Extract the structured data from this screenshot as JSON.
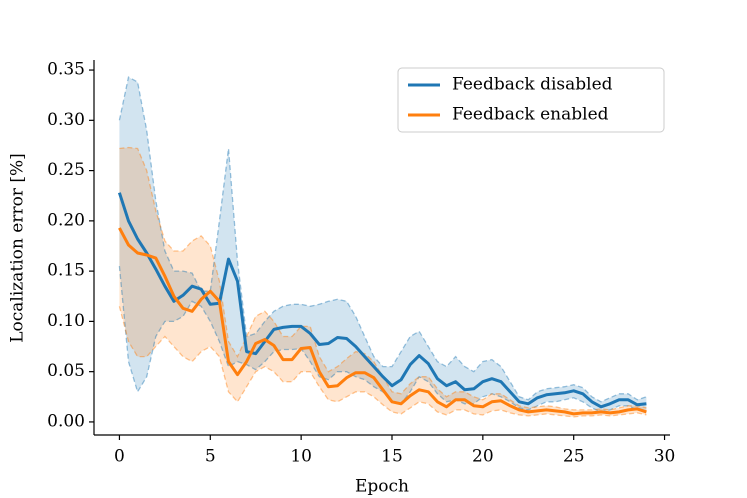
{
  "chart_data": {
    "type": "line",
    "x_label": "Epoch",
    "y_label": "Localization error [%]",
    "x": [
      0,
      0.5,
      1,
      1.5,
      2,
      2.5,
      3,
      3.5,
      4,
      4.5,
      5,
      5.5,
      6,
      6.5,
      7,
      7.5,
      8,
      8.5,
      9,
      9.5,
      10,
      10.5,
      11,
      11.5,
      12,
      12.5,
      13,
      13.5,
      14,
      14.5,
      15,
      15.5,
      16,
      16.5,
      17,
      17.5,
      18,
      18.5,
      19,
      19.5,
      20,
      20.5,
      21,
      21.5,
      22,
      22.5,
      23,
      23.5,
      24,
      24.5,
      25,
      25.5,
      26,
      26.5,
      27,
      27.5,
      28,
      28.5,
      29
    ],
    "series": [
      {
        "name": "Feedback disabled",
        "color": "#1f77b4",
        "values": [
          0.228,
          0.2,
          0.182,
          0.168,
          0.152,
          0.135,
          0.12,
          0.126,
          0.135,
          0.132,
          0.117,
          0.118,
          0.162,
          0.14,
          0.07,
          0.068,
          0.08,
          0.092,
          0.094,
          0.095,
          0.095,
          0.088,
          0.077,
          0.078,
          0.084,
          0.083,
          0.075,
          0.065,
          0.055,
          0.045,
          0.036,
          0.042,
          0.057,
          0.066,
          0.058,
          0.043,
          0.036,
          0.04,
          0.032,
          0.033,
          0.04,
          0.043,
          0.04,
          0.03,
          0.02,
          0.018,
          0.024,
          0.027,
          0.028,
          0.029,
          0.031,
          0.028,
          0.02,
          0.015,
          0.018,
          0.022,
          0.022,
          0.017,
          0.018
        ],
        "upper": [
          0.3,
          0.343,
          0.338,
          0.29,
          0.22,
          0.17,
          0.15,
          0.15,
          0.148,
          0.13,
          0.13,
          0.2,
          0.272,
          0.16,
          0.085,
          0.088,
          0.1,
          0.11,
          0.115,
          0.117,
          0.117,
          0.115,
          0.117,
          0.12,
          0.122,
          0.12,
          0.105,
          0.085,
          0.065,
          0.055,
          0.055,
          0.07,
          0.085,
          0.09,
          0.075,
          0.06,
          0.055,
          0.065,
          0.055,
          0.05,
          0.06,
          0.062,
          0.055,
          0.04,
          0.025,
          0.022,
          0.03,
          0.033,
          0.034,
          0.035,
          0.037,
          0.034,
          0.025,
          0.02,
          0.024,
          0.028,
          0.028,
          0.022,
          0.025
        ],
        "lower": [
          0.155,
          0.06,
          0.03,
          0.045,
          0.085,
          0.1,
          0.1,
          0.105,
          0.12,
          0.115,
          0.1,
          0.08,
          0.055,
          0.06,
          0.057,
          0.052,
          0.06,
          0.07,
          0.072,
          0.072,
          0.073,
          0.06,
          0.045,
          0.042,
          0.05,
          0.05,
          0.045,
          0.042,
          0.035,
          0.03,
          0.02,
          0.018,
          0.03,
          0.045,
          0.04,
          0.028,
          0.02,
          0.022,
          0.018,
          0.018,
          0.025,
          0.028,
          0.025,
          0.02,
          0.014,
          0.012,
          0.016,
          0.02,
          0.02,
          0.022,
          0.024,
          0.02,
          0.014,
          0.01,
          0.012,
          0.016,
          0.016,
          0.012,
          0.012
        ]
      },
      {
        "name": "Feedback enabled",
        "color": "#ff7f0e",
        "values": [
          0.193,
          0.176,
          0.168,
          0.166,
          0.163,
          0.145,
          0.125,
          0.113,
          0.11,
          0.122,
          0.13,
          0.12,
          0.06,
          0.047,
          0.06,
          0.078,
          0.082,
          0.076,
          0.062,
          0.062,
          0.073,
          0.074,
          0.05,
          0.035,
          0.036,
          0.044,
          0.049,
          0.049,
          0.044,
          0.032,
          0.02,
          0.018,
          0.026,
          0.032,
          0.03,
          0.02,
          0.015,
          0.022,
          0.022,
          0.016,
          0.015,
          0.02,
          0.021,
          0.016,
          0.012,
          0.01,
          0.011,
          0.012,
          0.011,
          0.01,
          0.008,
          0.009,
          0.009,
          0.01,
          0.009,
          0.01,
          0.012,
          0.013,
          0.01
        ],
        "upper": [
          0.272,
          0.273,
          0.272,
          0.25,
          0.21,
          0.18,
          0.17,
          0.17,
          0.18,
          0.185,
          0.175,
          0.14,
          0.08,
          0.065,
          0.085,
          0.105,
          0.11,
          0.1,
          0.085,
          0.085,
          0.095,
          0.095,
          0.065,
          0.05,
          0.055,
          0.063,
          0.07,
          0.068,
          0.06,
          0.045,
          0.03,
          0.028,
          0.038,
          0.045,
          0.045,
          0.033,
          0.025,
          0.03,
          0.03,
          0.025,
          0.022,
          0.028,
          0.028,
          0.022,
          0.016,
          0.014,
          0.015,
          0.016,
          0.015,
          0.013,
          0.012,
          0.012,
          0.012,
          0.013,
          0.012,
          0.014,
          0.016,
          0.016,
          0.014
        ],
        "lower": [
          0.115,
          0.08,
          0.065,
          0.065,
          0.075,
          0.085,
          0.075,
          0.065,
          0.06,
          0.07,
          0.075,
          0.065,
          0.03,
          0.02,
          0.035,
          0.05,
          0.055,
          0.05,
          0.04,
          0.04,
          0.05,
          0.05,
          0.035,
          0.022,
          0.02,
          0.025,
          0.03,
          0.03,
          0.025,
          0.017,
          0.01,
          0.008,
          0.014,
          0.02,
          0.018,
          0.01,
          0.007,
          0.012,
          0.012,
          0.008,
          0.007,
          0.011,
          0.012,
          0.009,
          0.007,
          0.006,
          0.007,
          0.008,
          0.007,
          0.006,
          0.005,
          0.006,
          0.006,
          0.007,
          0.006,
          0.007,
          0.008,
          0.009,
          0.007
        ]
      }
    ],
    "xlim": [
      -1.4,
      30.3
    ],
    "xticks": [
      0,
      5,
      10,
      15,
      20,
      25,
      30
    ],
    "ylim": [
      -0.013,
      0.36
    ],
    "yticks": [
      {
        "value": 0,
        "label": "0.00"
      },
      {
        "value": 0.05,
        "label": "0.05"
      },
      {
        "value": 0.1,
        "label": "0.10"
      },
      {
        "value": 0.15,
        "label": "0.15"
      },
      {
        "value": 0.2,
        "label": "0.20"
      },
      {
        "value": 0.25,
        "label": "0.25"
      },
      {
        "value": 0.3,
        "label": "0.30"
      },
      {
        "value": 0.35,
        "label": "0.35"
      }
    ],
    "legend": "upper right",
    "grid": false
  }
}
